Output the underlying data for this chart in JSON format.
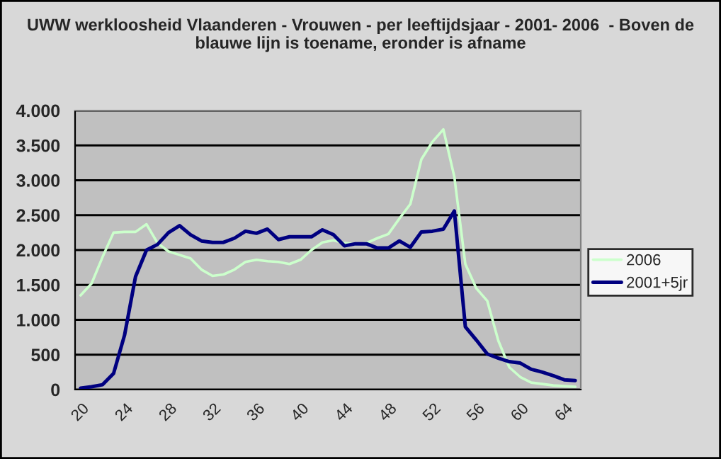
{
  "chart_data": {
    "type": "line",
    "title": "UWW werkloosheid Vlaanderen - Vrouwen - per leeftijdsjaar - 2001- 2006  - Boven de blauwe lijn is toename, eronder is afname",
    "categories": [
      "20",
      null,
      null,
      null,
      "24",
      null,
      null,
      null,
      "28",
      null,
      null,
      null,
      "32",
      null,
      null,
      null,
      "36",
      null,
      null,
      null,
      "40",
      null,
      null,
      null,
      "44",
      null,
      null,
      null,
      "48",
      null,
      null,
      null,
      "52",
      null,
      null,
      null,
      "56",
      null,
      null,
      null,
      "60",
      null,
      null,
      null,
      "64",
      null
    ],
    "series": [
      {
        "name": "2006",
        "color": "#ccffcc",
        "values": [
          1350,
          1520,
          1900,
          2250,
          2260,
          2260,
          2370,
          2100,
          1980,
          1930,
          1880,
          1720,
          1630,
          1650,
          1720,
          1830,
          1860,
          1840,
          1830,
          1800,
          1860,
          2000,
          2110,
          2140,
          2100,
          2080,
          2100,
          2170,
          2230,
          2450,
          2660,
          3300,
          3550,
          3730,
          3050,
          1800,
          1450,
          1270,
          700,
          320,
          180,
          100,
          80,
          60,
          50,
          40
        ]
      },
      {
        "name": "2001+5jr",
        "color": "#000080",
        "values": [
          20,
          40,
          70,
          230,
          780,
          1620,
          2000,
          2080,
          2250,
          2350,
          2220,
          2130,
          2110,
          2110,
          2170,
          2270,
          2240,
          2300,
          2150,
          2190,
          2190,
          2190,
          2290,
          2220,
          2060,
          2090,
          2090,
          2030,
          2030,
          2130,
          2040,
          2260,
          2270,
          2300,
          2560,
          900,
          710,
          510,
          450,
          400,
          380,
          290,
          250,
          200,
          140,
          130
        ]
      }
    ],
    "ylim": [
      0,
      4000
    ],
    "yticks": [
      {
        "value": 0,
        "label": "0"
      },
      {
        "value": 500,
        "label": "500"
      },
      {
        "value": 1000,
        "label": "1.000"
      },
      {
        "value": 1500,
        "label": "1.500"
      },
      {
        "value": 2000,
        "label": "2.000"
      },
      {
        "value": 2500,
        "label": "2.500"
      },
      {
        "value": 3000,
        "label": "3.000"
      },
      {
        "value": 3500,
        "label": "3.500"
      },
      {
        "value": 4000,
        "label": "4.000"
      }
    ],
    "grid": "y",
    "legend": "right",
    "marker": "none",
    "line_style": "solid"
  }
}
